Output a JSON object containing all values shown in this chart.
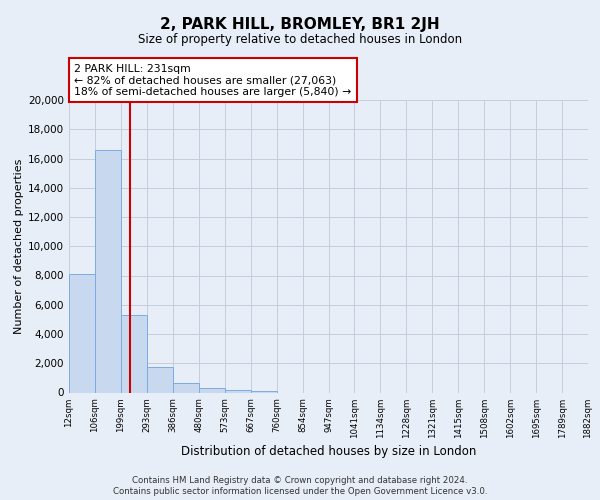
{
  "title": "2, PARK HILL, BROMLEY, BR1 2JH",
  "subtitle": "Size of property relative to detached houses in London",
  "xlabel": "Distribution of detached houses by size in London",
  "ylabel": "Number of detached properties",
  "bar_values": [
    8100,
    16600,
    5300,
    1750,
    650,
    300,
    200,
    100,
    0,
    0,
    0,
    0,
    0,
    0,
    0,
    0,
    0,
    0,
    0,
    0
  ],
  "bin_labels": [
    "12sqm",
    "106sqm",
    "199sqm",
    "293sqm",
    "386sqm",
    "480sqm",
    "573sqm",
    "667sqm",
    "760sqm",
    "854sqm",
    "947sqm",
    "1041sqm",
    "1134sqm",
    "1228sqm",
    "1321sqm",
    "1415sqm",
    "1508sqm",
    "1602sqm",
    "1695sqm",
    "1789sqm",
    "1882sqm"
  ],
  "bar_color": "#c8d8ee",
  "bar_edge_color": "#7aabe0",
  "vline_color": "#cc0000",
  "annotation_text_line1": "2 PARK HILL: 231sqm",
  "annotation_text_line2": "← 82% of detached houses are smaller (27,063)",
  "annotation_text_line3": "18% of semi-detached houses are larger (5,840) →",
  "annotation_box_color": "#ffffff",
  "annotation_box_edge": "#cc0000",
  "ylim": [
    0,
    20000
  ],
  "yticks": [
    0,
    2000,
    4000,
    6000,
    8000,
    10000,
    12000,
    14000,
    16000,
    18000,
    20000
  ],
  "footer_line1": "Contains HM Land Registry data © Crown copyright and database right 2024.",
  "footer_line2": "Contains public sector information licensed under the Open Government Licence v3.0.",
  "background_color": "#e8eef8",
  "grid_color": "#c5cedd",
  "n_bins": 20,
  "vline_bin": 2.34
}
